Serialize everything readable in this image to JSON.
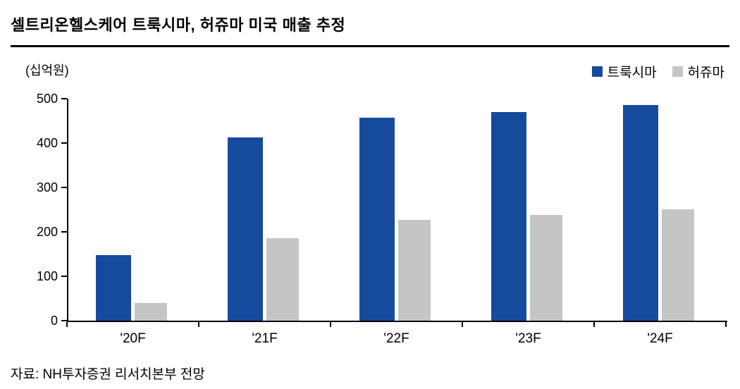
{
  "title": "셀트리온헬스케어 트룩시마, 허쥬마 미국 매출 추정",
  "unit_label": "(십억원)",
  "source": "자료: NH투자증권 리서치본부 전망",
  "colors": {
    "truxima_blue": "#164A9C",
    "herzuma_gray": "#C5C5C5",
    "axis_black": "#000000"
  },
  "legend": [
    {
      "label": "트룩시마",
      "color": "#164A9C"
    },
    {
      "label": "허쥬마",
      "color": "#C5C5C5"
    }
  ],
  "chart_data": {
    "type": "bar",
    "title": "셀트리온헬스케어 트룩시마, 허쥬마 미국 매출 추정",
    "xlabel": "",
    "ylabel": "(십억원)",
    "categories": [
      "'20F",
      "'21F",
      "'22F",
      "'23F",
      "'24F"
    ],
    "series": [
      {
        "name": "트룩시마",
        "color": "#164A9C",
        "values": [
          148,
          413,
          457,
          470,
          485
        ]
      },
      {
        "name": "허쥬마",
        "color": "#C5C5C5",
        "values": [
          40,
          185,
          227,
          238,
          251
        ]
      }
    ],
    "ylim": [
      0,
      500
    ],
    "yticks": [
      0,
      100,
      200,
      300,
      400,
      500
    ],
    "grid": false,
    "legend_position": "top-right"
  }
}
